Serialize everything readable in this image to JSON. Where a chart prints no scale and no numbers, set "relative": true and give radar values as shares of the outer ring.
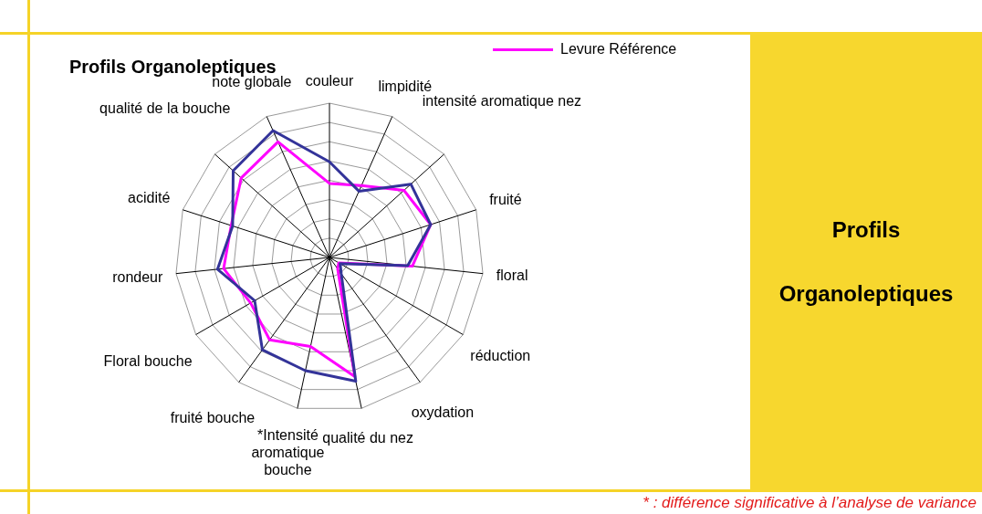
{
  "chart_data": {
    "type": "radar",
    "title": "Profils Organoleptiques",
    "relative": true,
    "grid": true,
    "legend": "top right",
    "categories": [
      "couleur",
      "limpidité",
      "intensité aromatique nez",
      "fruité",
      "floral",
      "réduction",
      "oxydation",
      "qualité du nez",
      "*Intensité aromatique bouche",
      "fruité bouche",
      "Floral bouche",
      "rondeur",
      "acidité",
      "qualité de la bouche",
      "note globale"
    ],
    "series": [
      {
        "color": "#333399",
        "values": [
          0.62,
          0.47,
          0.71,
          0.69,
          0.51,
          0.08,
          0.13,
          0.82,
          0.75,
          0.74,
          0.56,
          0.73,
          0.66,
          0.84,
          0.9
        ]
      },
      {
        "name": "Levure Référence",
        "color": "#ff00ff",
        "values": [
          0.48,
          0.51,
          0.65,
          0.69,
          0.54,
          0.07,
          0.09,
          0.79,
          0.59,
          0.66,
          0.59,
          0.69,
          0.67,
          0.77,
          0.82
        ]
      }
    ],
    "annotations": [
      "Profils Organoleptiques",
      "* : différence significative à l’analyse de variance"
    ]
  }
}
